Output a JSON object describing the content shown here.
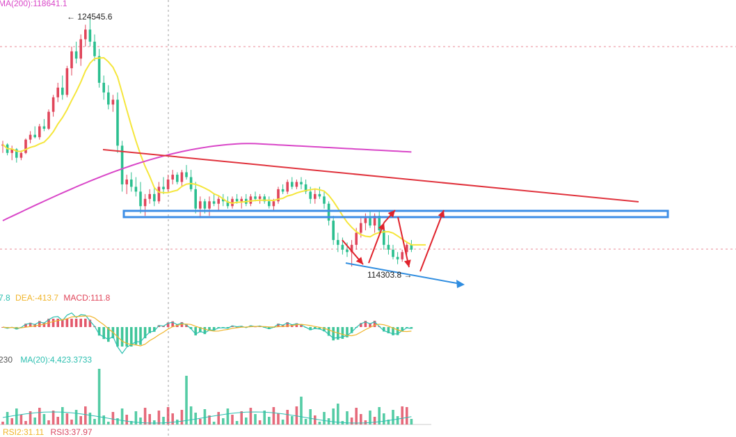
{
  "colors": {
    "up": "#e0455a",
    "down": "#2bbf8f",
    "ma_short": "#f5e63c",
    "ma200": "#d946c8",
    "trendline": "#e0323c",
    "support_zone": "#3d8ee6",
    "pattern_arrows": "#e0232c",
    "projection_arrow": "#2f8de0",
    "dif": "#2bbfb0",
    "dea": "#f0b429",
    "macd_label": "#e0455a",
    "grid_dashed_red": "#e05a6a",
    "vol_ma": "#2bbfb0",
    "rsi1": "#f0b429",
    "rsi2": "#d94660",
    "text_dark": "#222222"
  },
  "price_panel": {
    "ma200_label": "MA(200):118641.1",
    "high_marker": "124545.6",
    "low_marker": "114303.8"
  },
  "macd_panel": {
    "dif_label": "7.8",
    "dea_label": "DEA:-413.7",
    "macd_label": "MACD:111.8"
  },
  "volume_panel": {
    "vol_label": "230",
    "ma20_label": "MA(20):4,423.3733"
  },
  "rsi_panel": {
    "rsi2_label": "RSI2:31.11",
    "rsi3_label": "RSI3:37.97"
  },
  "chart_data": {
    "type": "candlestick",
    "y_reference": [
      124545.6,
      114303.8
    ],
    "candles": [
      [
        119300,
        119500,
        119000,
        119350
      ],
      [
        119350,
        119400,
        118900,
        119000
      ],
      [
        119000,
        119300,
        118700,
        119150
      ],
      [
        119150,
        119200,
        118600,
        118800
      ],
      [
        118800,
        119100,
        118700,
        119000
      ],
      [
        119000,
        119600,
        118950,
        119550
      ],
      [
        119550,
        119900,
        119400,
        119750
      ],
      [
        119750,
        120100,
        119600,
        119650
      ],
      [
        119650,
        120200,
        119550,
        120100
      ],
      [
        120100,
        120400,
        119900,
        120000
      ],
      [
        120000,
        120800,
        119950,
        120700
      ],
      [
        120700,
        121400,
        120500,
        121300
      ],
      [
        121300,
        121900,
        121100,
        121700
      ],
      [
        121700,
        122200,
        121200,
        121400
      ],
      [
        121400,
        122600,
        121300,
        122500
      ],
      [
        122500,
        123400,
        122200,
        123200
      ],
      [
        123200,
        123600,
        122700,
        122900
      ],
      [
        122900,
        123900,
        122600,
        123700
      ],
      [
        123700,
        124300,
        123400,
        124100
      ],
      [
        124100,
        124545.6,
        123400,
        123600
      ],
      [
        123600,
        123900,
        122800,
        123000
      ],
      [
        123000,
        123300,
        121700,
        121900
      ],
      [
        121900,
        122200,
        121200,
        121500
      ],
      [
        121500,
        121800,
        120800,
        121000
      ],
      [
        121000,
        121400,
        120700,
        121200
      ],
      [
        121200,
        121500,
        119000,
        119300
      ],
      [
        119300,
        119500,
        117400,
        117700
      ],
      [
        117700,
        118100,
        117300,
        117900
      ],
      [
        117900,
        118200,
        117400,
        117600
      ],
      [
        117600,
        118000,
        117200,
        117400
      ],
      [
        117400,
        117800,
        116500,
        116800
      ],
      [
        116800,
        117300,
        116400,
        117100
      ],
      [
        117100,
        117500,
        116900,
        117300
      ],
      [
        117300,
        117600,
        116800,
        117000
      ],
      [
        117000,
        117800,
        116900,
        117600
      ],
      [
        117600,
        118000,
        117300,
        117500
      ],
      [
        117500,
        118100,
        117400,
        117900
      ],
      [
        117900,
        118300,
        117700,
        118100
      ],
      [
        118100,
        118200,
        117700,
        117800
      ],
      [
        117800,
        118300,
        117600,
        118200
      ],
      [
        118200,
        118500,
        117900,
        118000
      ],
      [
        118000,
        118300,
        117400,
        117500
      ],
      [
        117500,
        117800,
        116500,
        116700
      ],
      [
        116700,
        117200,
        116300,
        117000
      ],
      [
        117000,
        117100,
        116500,
        116700
      ],
      [
        116700,
        117200,
        116400,
        117000
      ],
      [
        117000,
        117300,
        116800,
        116900
      ],
      [
        116900,
        117200,
        116600,
        117100
      ],
      [
        117100,
        117300,
        116800,
        117000
      ],
      [
        117000,
        117200,
        116700,
        116800
      ],
      [
        116800,
        117200,
        116700,
        117100
      ],
      [
        117100,
        117300,
        116900,
        117000
      ],
      [
        117000,
        117200,
        116700,
        117100
      ],
      [
        117100,
        117300,
        116800,
        116900
      ],
      [
        116900,
        117300,
        116800,
        117200
      ],
      [
        117200,
        117400,
        117000,
        117100
      ],
      [
        117100,
        117300,
        116900,
        117200
      ],
      [
        117200,
        117300,
        116900,
        117000
      ],
      [
        117000,
        117200,
        116700,
        116800
      ],
      [
        116800,
        117100,
        116600,
        117000
      ],
      [
        117000,
        117600,
        116900,
        117500
      ],
      [
        117500,
        117700,
        117300,
        117400
      ],
      [
        117400,
        117900,
        117300,
        117800
      ],
      [
        117800,
        118000,
        117500,
        117600
      ],
      [
        117600,
        117900,
        117500,
        117800
      ],
      [
        117800,
        118000,
        117500,
        117700
      ],
      [
        117700,
        117900,
        117300,
        117400
      ],
      [
        117400,
        117600,
        116900,
        117100
      ],
      [
        117100,
        117500,
        116900,
        117300
      ],
      [
        117300,
        117600,
        117100,
        117200
      ],
      [
        117200,
        117400,
        116700,
        116900
      ],
      [
        116900,
        117000,
        116000,
        116200
      ],
      [
        116200,
        116400,
        115200,
        115400
      ],
      [
        115400,
        115700,
        114900,
        115200
      ],
      [
        115200,
        115500,
        114800,
        115000
      ],
      [
        115000,
        115300,
        114700,
        114900
      ],
      [
        114900,
        115400,
        114303.8,
        115200
      ],
      [
        115200,
        115900,
        115000,
        115700
      ],
      [
        115700,
        116300,
        115500,
        116100
      ],
      [
        116100,
        116500,
        115800,
        116300
      ],
      [
        116300,
        116600,
        115900,
        116000
      ],
      [
        116000,
        116500,
        115700,
        116400
      ],
      [
        116400,
        116600,
        115600,
        115800
      ],
      [
        115800,
        116000,
        115000,
        115200
      ],
      [
        115200,
        115600,
        114800,
        115000
      ],
      [
        115000,
        115200,
        114600,
        114700
      ],
      [
        114700,
        114900,
        114400,
        114600
      ],
      [
        114600,
        115000,
        114500,
        114900
      ],
      [
        114900,
        115300,
        114800,
        115200
      ],
      [
        115200,
        115400,
        114900,
        115000
      ]
    ],
    "ma200_visible_segment": "rising then flattening",
    "volume_ma_label": "MA(20):4,423.3733"
  }
}
